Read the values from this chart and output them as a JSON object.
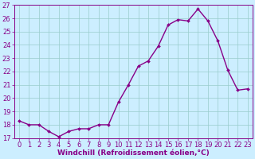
{
  "x": [
    0,
    1,
    2,
    3,
    4,
    5,
    6,
    7,
    8,
    9,
    10,
    11,
    12,
    13,
    14,
    15,
    16,
    17,
    18,
    19,
    20,
    21,
    22,
    23
  ],
  "y": [
    18.3,
    18.0,
    18.0,
    17.5,
    17.1,
    17.5,
    17.7,
    17.7,
    18.0,
    18.0,
    19.7,
    21.0,
    22.4,
    22.8,
    23.9,
    25.5,
    25.9,
    25.8,
    26.7,
    25.8,
    24.3,
    22.1,
    20.6,
    20.7
  ],
  "line_color": "#880088",
  "marker": "D",
  "marker_size": 2.0,
  "bg_color": "#cceeff",
  "grid_color": "#99cccc",
  "xlabel": "Windchill (Refroidissement éolien,°C)",
  "ylim": [
    17,
    27
  ],
  "xlim_min": -0.5,
  "xlim_max": 23.5,
  "yticks": [
    17,
    18,
    19,
    20,
    21,
    22,
    23,
    24,
    25,
    26,
    27
  ],
  "xticks": [
    0,
    1,
    2,
    3,
    4,
    5,
    6,
    7,
    8,
    9,
    10,
    11,
    12,
    13,
    14,
    15,
    16,
    17,
    18,
    19,
    20,
    21,
    22,
    23
  ],
  "xlabel_fontsize": 6.5,
  "tick_fontsize": 6.0,
  "line_width": 1.0
}
